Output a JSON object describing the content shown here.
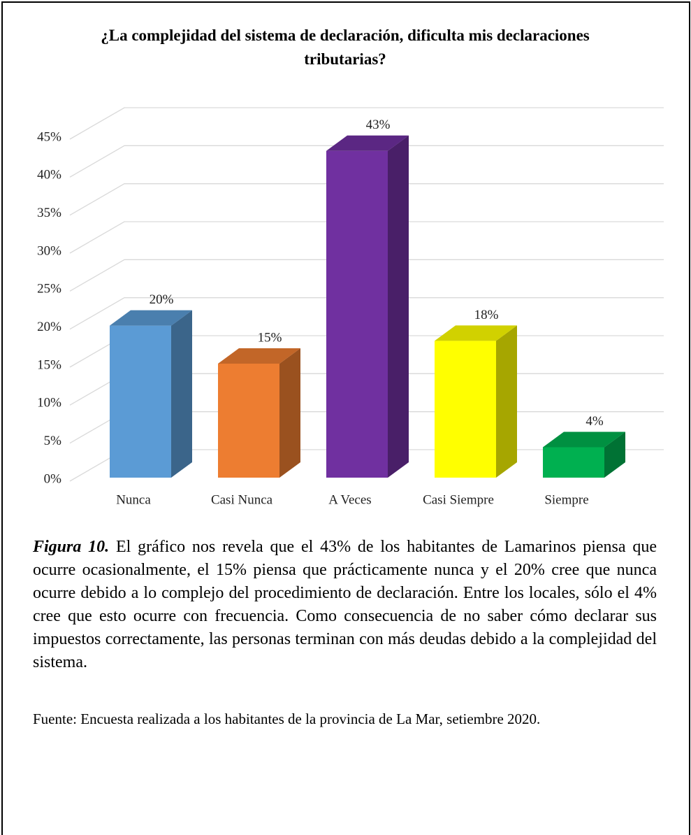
{
  "chart_data": {
    "type": "bar3d",
    "title": "¿La complejidad del sistema de declaración, dificulta mis declaraciones tributarias?",
    "categories": [
      "Nunca",
      "Casi Nunca",
      "A Veces",
      "Casi Siempre",
      "Siempre"
    ],
    "values": [
      20,
      15,
      43,
      18,
      4
    ],
    "value_labels": [
      "20%",
      "15%",
      "43%",
      "18%",
      "4%"
    ],
    "colors": [
      "#5b9bd5",
      "#ed7d31",
      "#7030a0",
      "#ffff00",
      "#00b050"
    ],
    "ylim": [
      0,
      45
    ],
    "yticks": [
      {
        "value": 0,
        "label": "0%"
      },
      {
        "value": 5,
        "label": "5%"
      },
      {
        "value": 10,
        "label": "10%"
      },
      {
        "value": 15,
        "label": "15%"
      },
      {
        "value": 20,
        "label": "20%"
      },
      {
        "value": 25,
        "label": "25%"
      },
      {
        "value": 30,
        "label": "30%"
      },
      {
        "value": 35,
        "label": "35%"
      },
      {
        "value": 40,
        "label": "40%"
      },
      {
        "value": 45,
        "label": "45%"
      }
    ],
    "grid": true
  },
  "caption": {
    "label": "Figura 10.",
    "text": "El gráfico nos revela que el 43% de los habitantes de Lamarinos piensa que ocurre ocasionalmente, el 15% piensa que prácticamente nunca y el 20% cree que nunca ocurre debido a lo complejo del procedimiento de declaración. Entre los locales, sólo el 4% cree que esto ocurre con frecuencia. Como consecuencia de no saber cómo declarar sus impuestos correctamente, las personas terminan con más deudas debido a la complejidad del sistema."
  },
  "source": "Fuente: Encuesta realizada a los habitantes de la provincia de La Mar, setiembre 2020."
}
